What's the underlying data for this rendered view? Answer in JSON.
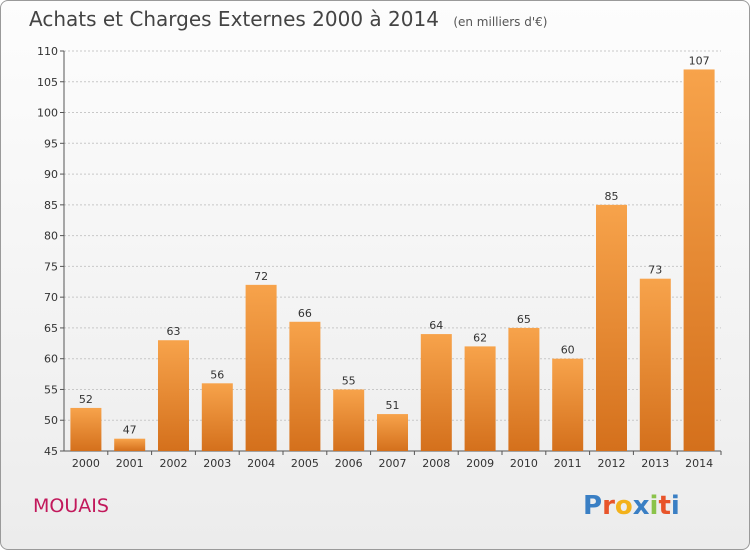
{
  "chart_data": {
    "type": "bar",
    "title": "Achats et Charges Externes 2000 à 2014",
    "subtitle": "(en milliers d'€)",
    "categories": [
      "2000",
      "2001",
      "2002",
      "2003",
      "2004",
      "2005",
      "2006",
      "2007",
      "2008",
      "2009",
      "2010",
      "2011",
      "2012",
      "2013",
      "2014"
    ],
    "values": [
      52,
      47,
      63,
      56,
      72,
      66,
      55,
      51,
      64,
      62,
      65,
      60,
      85,
      73,
      107
    ],
    "ylim": [
      45,
      110
    ],
    "yticks": [
      45,
      50,
      55,
      60,
      65,
      70,
      75,
      80,
      85,
      90,
      95,
      100,
      105,
      110
    ],
    "grid": true,
    "bar_color_top": "#f7a34b",
    "bar_color_bottom": "#d4701c"
  },
  "commune": "MOUAIS",
  "logo": {
    "letters": [
      "P",
      "r",
      "o",
      "x",
      "i",
      "t",
      "i"
    ],
    "colors": [
      "#3a7fc4",
      "#e8542a",
      "#f3b21b",
      "#3a7fc4",
      "#8bc34a",
      "#e8542a",
      "#3a7fc4"
    ]
  }
}
